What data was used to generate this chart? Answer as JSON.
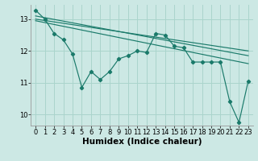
{
  "background_color": "#cce8e4",
  "grid_color": "#aad4cc",
  "line_color": "#1a7a6a",
  "marker_color": "#1a7a6a",
  "xlabel": "Humidex (Indice chaleur)",
  "xlabel_fontsize": 7.5,
  "tick_fontsize": 6,
  "xlim": [
    -0.5,
    23.5
  ],
  "ylim": [
    9.65,
    13.45
  ],
  "yticks": [
    10,
    11,
    12,
    13
  ],
  "xticks": [
    0,
    1,
    2,
    3,
    4,
    5,
    6,
    7,
    8,
    9,
    10,
    11,
    12,
    13,
    14,
    15,
    16,
    17,
    18,
    19,
    20,
    21,
    22,
    23
  ],
  "series1_x": [
    0,
    1,
    2,
    3,
    4,
    5,
    6,
    7,
    8,
    9,
    10,
    11,
    12,
    13,
    14,
    15,
    16,
    17,
    18,
    19,
    20,
    21,
    22,
    23
  ],
  "series1_y": [
    13.28,
    13.0,
    12.55,
    12.35,
    11.9,
    10.85,
    11.35,
    11.1,
    11.35,
    11.75,
    11.85,
    12.0,
    11.95,
    12.55,
    12.5,
    12.15,
    12.1,
    11.65,
    11.65,
    11.65,
    11.65,
    10.4,
    9.75,
    11.05
  ],
  "series2_x": [
    0,
    23
  ],
  "series2_y": [
    13.1,
    11.85
  ],
  "series3_x": [
    0,
    23
  ],
  "series3_y": [
    13.0,
    12.0
  ],
  "series4_x": [
    0,
    23
  ],
  "series4_y": [
    12.95,
    11.6
  ]
}
